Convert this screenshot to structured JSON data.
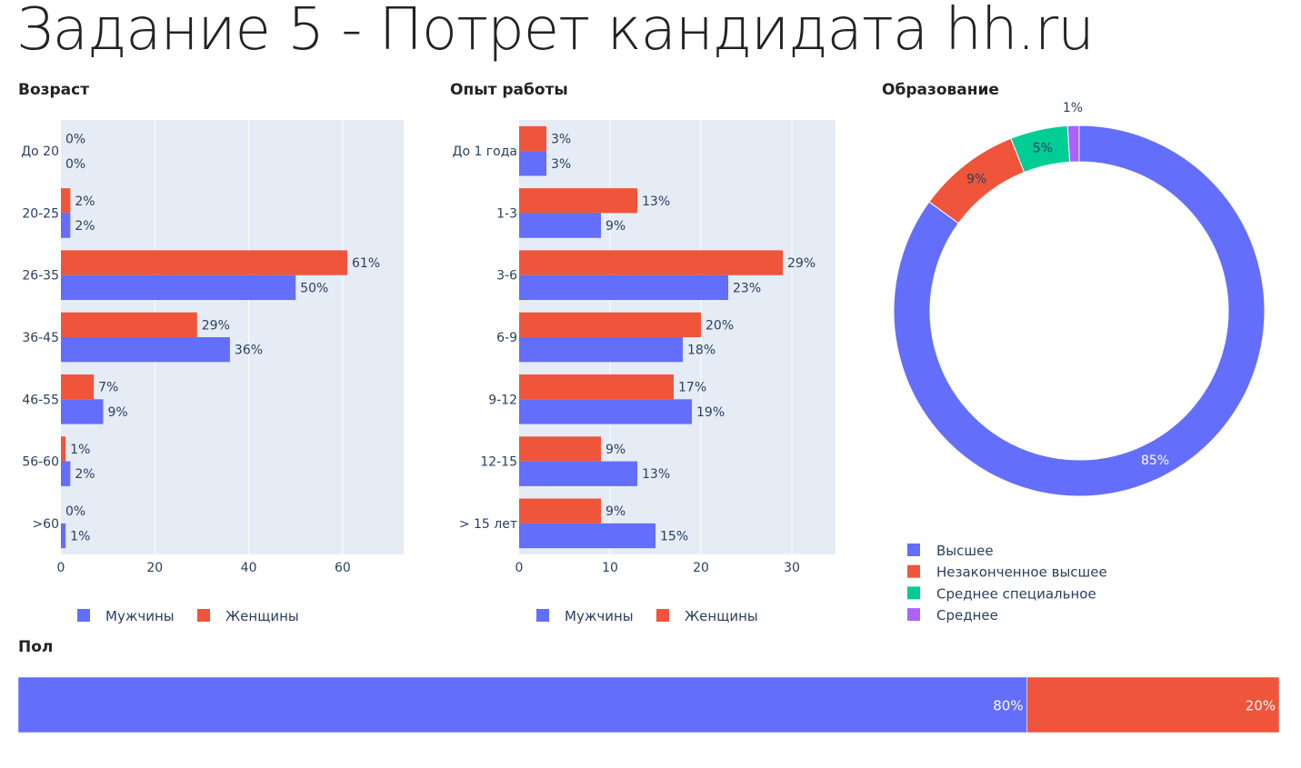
{
  "title": "Задание 5 - Потрет кандидата hh.ru",
  "colors": {
    "men": "#636efa",
    "women": "#ef553b",
    "green": "#00cc96",
    "purple": "#ab63fa",
    "plotbg": "#e5ecf6"
  },
  "chart_data": [
    {
      "id": "age",
      "type": "bar",
      "orientation": "horizontal",
      "title": "Возраст",
      "categories": [
        "До 20",
        "20-25",
        "26-35",
        "36-45",
        "46-55",
        "56-60",
        ">60"
      ],
      "series": [
        {
          "name": "Мужчины",
          "values": [
            0,
            2,
            50,
            36,
            9,
            2,
            1
          ],
          "labels": [
            "0%",
            "2%",
            "50%",
            "36%",
            "9%",
            "2%",
            "1%"
          ]
        },
        {
          "name": "Женщины",
          "values": [
            0,
            2,
            61,
            29,
            7,
            1,
            0
          ],
          "labels": [
            "0%",
            "2%",
            "61%",
            "29%",
            "7%",
            "1%",
            "0%"
          ]
        }
      ],
      "xlim": [
        0,
        73
      ],
      "xticks": [
        "0",
        "20",
        "40",
        "60"
      ],
      "legend": [
        "Мужчины",
        "Женщины"
      ]
    },
    {
      "id": "exp",
      "type": "bar",
      "orientation": "horizontal",
      "title": "Опыт работы",
      "categories": [
        "До 1 года",
        "1-3",
        "3-6",
        "6-9",
        "9-12",
        "12-15",
        "> 15 лет"
      ],
      "series": [
        {
          "name": "Мужчины",
          "values": [
            3,
            9,
            23,
            18,
            19,
            13,
            15
          ],
          "labels": [
            "3%",
            "9%",
            "23%",
            "18%",
            "19%",
            "13%",
            "15%"
          ]
        },
        {
          "name": "Женщины",
          "values": [
            3,
            13,
            29,
            20,
            17,
            9,
            9
          ],
          "labels": [
            "3%",
            "13%",
            "29%",
            "20%",
            "17%",
            "9%",
            "9%"
          ]
        }
      ],
      "xlim": [
        0,
        34.8
      ],
      "xticks": [
        "0",
        "10",
        "20",
        "30"
      ],
      "legend": [
        "Мужчины",
        "Женщины"
      ]
    },
    {
      "id": "edu",
      "type": "pie",
      "hole": true,
      "title": "Образование",
      "slices": [
        {
          "name": "Высшее",
          "value": 85,
          "label": "85%"
        },
        {
          "name": "Незаконченное высшее",
          "value": 9,
          "label": "9%"
        },
        {
          "name": "Среднее специальное",
          "value": 5,
          "label": "5%"
        },
        {
          "name": "Среднее",
          "value": 1,
          "label": "1%"
        }
      ]
    },
    {
      "id": "sex",
      "type": "bar",
      "orientation": "horizontal",
      "stacked": true,
      "title": "Пол",
      "series": [
        {
          "name": "Мужчины",
          "value": 80,
          "label": "80%"
        },
        {
          "name": "Женщины",
          "value": 20,
          "label": "20%"
        }
      ]
    }
  ]
}
